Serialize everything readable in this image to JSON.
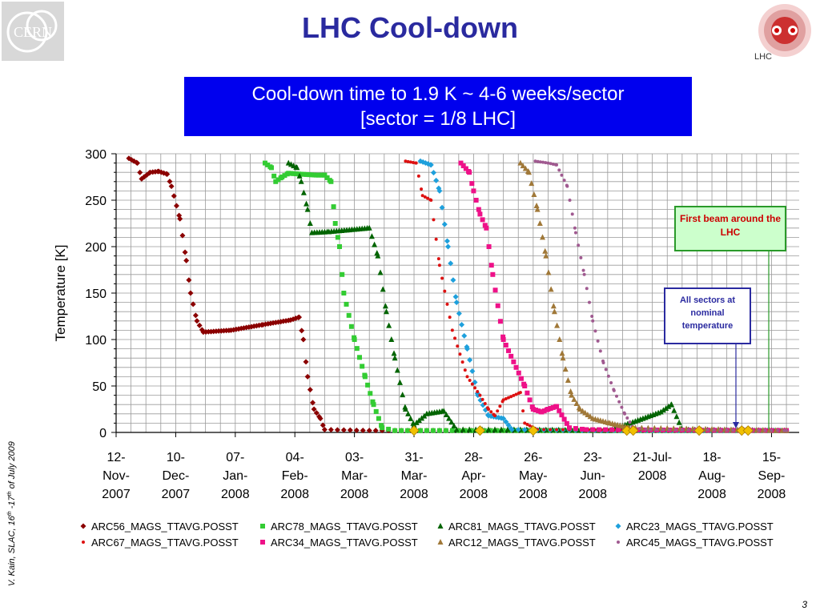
{
  "slide": {
    "title": "LHC Cool-down",
    "banner_line1": "Cool-down time to 1.9 K ~ 4-6 weeks/sector",
    "banner_line2": "[sector = 1/8 LHC]",
    "logo_left_text": "CERN",
    "logo_right_text": "LHC",
    "side_note_author": "V. Kain, SLAC, 16",
    "side_note_th1": "th",
    "side_note_mid": " -17",
    "side_note_th2": "th",
    "side_note_end": " of July 2009",
    "page_number": "3"
  },
  "annotations": {
    "first_beam": "First beam around the LHC",
    "all_sectors": "All sectors at nominal temperature"
  },
  "colors": {
    "title": "#2a2a9f",
    "banner_bg": "#0000ee",
    "ARC56": "#8b0000",
    "ARC78": "#33cc33",
    "ARC81": "#006400",
    "ARC23": "#1ea0dc",
    "ARC67": "#dd1111",
    "ARC34": "#ee1188",
    "ARC12": "#a07838",
    "ARC45": "#a05a90",
    "marker": "#f0c000"
  },
  "chart_data": {
    "type": "scatter",
    "ylabel": "Temperature [K]",
    "xlabel": "",
    "ylim": [
      0,
      300
    ],
    "yticks": [
      0,
      50,
      100,
      150,
      200,
      250,
      300
    ],
    "xlim": [
      "2007-11-12",
      "2008-09-28"
    ],
    "xticks": [
      {
        "date": "2007-11-12",
        "label": [
          "12-",
          "Nov-",
          "2007"
        ]
      },
      {
        "date": "2007-12-10",
        "label": [
          "10-",
          "Dec-",
          "2007"
        ]
      },
      {
        "date": "2008-01-07",
        "label": [
          "07-",
          "Jan-",
          "2008"
        ]
      },
      {
        "date": "2008-02-04",
        "label": [
          "04-",
          "Feb-",
          "2008"
        ]
      },
      {
        "date": "2008-03-03",
        "label": [
          "03-",
          "Mar-",
          "2008"
        ]
      },
      {
        "date": "2008-03-31",
        "label": [
          "31-",
          "Mar-",
          "2008"
        ]
      },
      {
        "date": "2008-04-28",
        "label": [
          "28-",
          "Apr-",
          "2008"
        ]
      },
      {
        "date": "2008-05-26",
        "label": [
          "26-",
          "May-",
          "2008"
        ]
      },
      {
        "date": "2008-06-23",
        "label": [
          "23-",
          "Jun-",
          "2008"
        ]
      },
      {
        "date": "2008-07-21",
        "label": [
          "21-Jul-",
          "2008",
          ""
        ]
      },
      {
        "date": "2008-08-18",
        "label": [
          "18-",
          "Aug-",
          "2008"
        ]
      },
      {
        "date": "2008-09-15",
        "label": [
          "15-",
          "Sep-",
          "2008"
        ]
      }
    ],
    "grid": true,
    "legend": "bottom",
    "series": [
      {
        "name": "ARC56_MAGS_TTAVG.POSST",
        "color": "#8b0000",
        "marker": "diamond",
        "points": [
          [
            "2007-11-18",
            295
          ],
          [
            "2007-11-22",
            290
          ],
          [
            "2007-11-24",
            273
          ],
          [
            "2007-11-28",
            280
          ],
          [
            "2007-12-02",
            281
          ],
          [
            "2007-12-06",
            278
          ],
          [
            "2007-12-08",
            265
          ],
          [
            "2007-12-12",
            230
          ],
          [
            "2007-12-15",
            185
          ],
          [
            "2007-12-17",
            150
          ],
          [
            "2007-12-20",
            120
          ],
          [
            "2007-12-23",
            108
          ],
          [
            "2008-01-05",
            110
          ],
          [
            "2008-01-20",
            116
          ],
          [
            "2008-02-02",
            121
          ],
          [
            "2008-02-06",
            124
          ],
          [
            "2008-02-08",
            100
          ],
          [
            "2008-02-10",
            60
          ],
          [
            "2008-02-13",
            25
          ],
          [
            "2008-02-16",
            15
          ],
          [
            "2008-02-18",
            3
          ],
          [
            "2008-03-10",
            2
          ],
          [
            "2008-03-28",
            2
          ],
          [
            "2008-06-30",
            2
          ],
          [
            "2008-09-22",
            2
          ]
        ]
      },
      {
        "name": "ARC78_MAGS_TTAVG.POSST",
        "color": "#33cc33",
        "marker": "square",
        "points": [
          [
            "2008-01-21",
            290
          ],
          [
            "2008-01-24",
            285
          ],
          [
            "2008-01-26",
            270
          ],
          [
            "2008-01-29",
            275
          ],
          [
            "2008-02-01",
            279
          ],
          [
            "2008-02-07",
            278
          ],
          [
            "2008-02-14",
            277
          ],
          [
            "2008-02-18",
            277
          ],
          [
            "2008-02-21",
            270
          ],
          [
            "2008-02-23",
            225
          ],
          [
            "2008-02-25",
            200
          ],
          [
            "2008-02-27",
            150
          ],
          [
            "2008-03-03",
            100
          ],
          [
            "2008-03-08",
            60
          ],
          [
            "2008-03-12",
            30
          ],
          [
            "2008-03-16",
            5
          ],
          [
            "2008-03-22",
            2
          ],
          [
            "2008-06-30",
            2
          ],
          [
            "2008-09-22",
            2
          ]
        ]
      },
      {
        "name": "ARC81_MAGS_TTAVG.POSST",
        "color": "#006400",
        "marker": "triangle",
        "points": [
          [
            "2008-02-01",
            290
          ],
          [
            "2008-02-05",
            285
          ],
          [
            "2008-02-07",
            270
          ],
          [
            "2008-02-10",
            240
          ],
          [
            "2008-02-12",
            215
          ],
          [
            "2008-02-20",
            216
          ],
          [
            "2008-03-10",
            220
          ],
          [
            "2008-03-14",
            190
          ],
          [
            "2008-03-18",
            130
          ],
          [
            "2008-03-22",
            80
          ],
          [
            "2008-03-27",
            25
          ],
          [
            "2008-03-31",
            8
          ],
          [
            "2008-04-06",
            20
          ],
          [
            "2008-04-14",
            23
          ],
          [
            "2008-04-20",
            3
          ],
          [
            "2008-05-26",
            3
          ],
          [
            "2008-07-01",
            2
          ],
          [
            "2008-07-25",
            22
          ],
          [
            "2008-07-30",
            30
          ],
          [
            "2008-08-04",
            3
          ],
          [
            "2008-09-22",
            2
          ]
        ]
      },
      {
        "name": "ARC23_MAGS_TTAVG.POSST",
        "color": "#1ea0dc",
        "marker": "diamond",
        "points": [
          [
            "2008-04-03",
            292
          ],
          [
            "2008-04-08",
            288
          ],
          [
            "2008-04-12",
            260
          ],
          [
            "2008-04-16",
            200
          ],
          [
            "2008-04-20",
            140
          ],
          [
            "2008-04-25",
            90
          ],
          [
            "2008-04-30",
            40
          ],
          [
            "2008-05-05",
            18
          ],
          [
            "2008-05-12",
            15
          ],
          [
            "2008-05-16",
            3
          ],
          [
            "2008-06-30",
            2
          ],
          [
            "2008-09-22",
            2
          ]
        ]
      },
      {
        "name": "ARC67_MAGS_TTAVG.POSST",
        "color": "#dd1111",
        "marker": "circle",
        "points": [
          [
            "2008-03-27",
            292
          ],
          [
            "2008-04-01",
            290
          ],
          [
            "2008-04-04",
            255
          ],
          [
            "2008-04-08",
            250
          ],
          [
            "2008-04-12",
            180
          ],
          [
            "2008-04-18",
            110
          ],
          [
            "2008-04-25",
            60
          ],
          [
            "2008-05-01",
            40
          ],
          [
            "2008-05-05",
            25
          ],
          [
            "2008-05-08",
            18
          ],
          [
            "2008-05-12",
            35
          ],
          [
            "2008-05-20",
            43
          ],
          [
            "2008-05-22",
            10
          ],
          [
            "2008-05-28",
            3
          ],
          [
            "2008-09-22",
            2
          ]
        ]
      },
      {
        "name": "ARC34_MAGS_TTAVG.POSST",
        "color": "#ee1188",
        "marker": "square",
        "points": [
          [
            "2008-04-22",
            290
          ],
          [
            "2008-04-26",
            280
          ],
          [
            "2008-04-28",
            260
          ],
          [
            "2008-05-01",
            235
          ],
          [
            "2008-05-04",
            220
          ],
          [
            "2008-05-07",
            170
          ],
          [
            "2008-05-12",
            100
          ],
          [
            "2008-05-18",
            70
          ],
          [
            "2008-05-22",
            50
          ],
          [
            "2008-05-26",
            25
          ],
          [
            "2008-05-30",
            22
          ],
          [
            "2008-06-02",
            25
          ],
          [
            "2008-06-06",
            28
          ],
          [
            "2008-06-12",
            5
          ],
          [
            "2008-06-20",
            3
          ],
          [
            "2008-09-22",
            2
          ]
        ]
      },
      {
        "name": "ARC12_MAGS_TTAVG.POSST",
        "color": "#a07838",
        "marker": "triangle",
        "points": [
          [
            "2008-05-20",
            290
          ],
          [
            "2008-05-24",
            280
          ],
          [
            "2008-05-28",
            240
          ],
          [
            "2008-06-01",
            190
          ],
          [
            "2008-06-05",
            130
          ],
          [
            "2008-06-09",
            80
          ],
          [
            "2008-06-13",
            40
          ],
          [
            "2008-06-17",
            25
          ],
          [
            "2008-06-23",
            15
          ],
          [
            "2008-07-01",
            10
          ],
          [
            "2008-07-10",
            5
          ],
          [
            "2008-09-22",
            2
          ]
        ]
      },
      {
        "name": "ARC45_MAGS_TTAVG.POSST",
        "color": "#a05a90",
        "marker": "circle",
        "points": [
          [
            "2008-05-27",
            292
          ],
          [
            "2008-06-02",
            290
          ],
          [
            "2008-06-06",
            288
          ],
          [
            "2008-06-11",
            265
          ],
          [
            "2008-06-15",
            215
          ],
          [
            "2008-06-19",
            170
          ],
          [
            "2008-06-23",
            120
          ],
          [
            "2008-06-28",
            75
          ],
          [
            "2008-07-03",
            45
          ],
          [
            "2008-07-08",
            20
          ],
          [
            "2008-07-12",
            5
          ],
          [
            "2008-07-20",
            3
          ],
          [
            "2008-09-22",
            2
          ]
        ]
      }
    ],
    "markers": [
      [
        "2008-03-31",
        2
      ],
      [
        "2008-05-01",
        2
      ],
      [
        "2008-05-26",
        2
      ],
      [
        "2008-07-09",
        2
      ],
      [
        "2008-07-12",
        2
      ],
      [
        "2008-08-12",
        2
      ],
      [
        "2008-09-01",
        2
      ],
      [
        "2008-09-04",
        2
      ]
    ]
  }
}
